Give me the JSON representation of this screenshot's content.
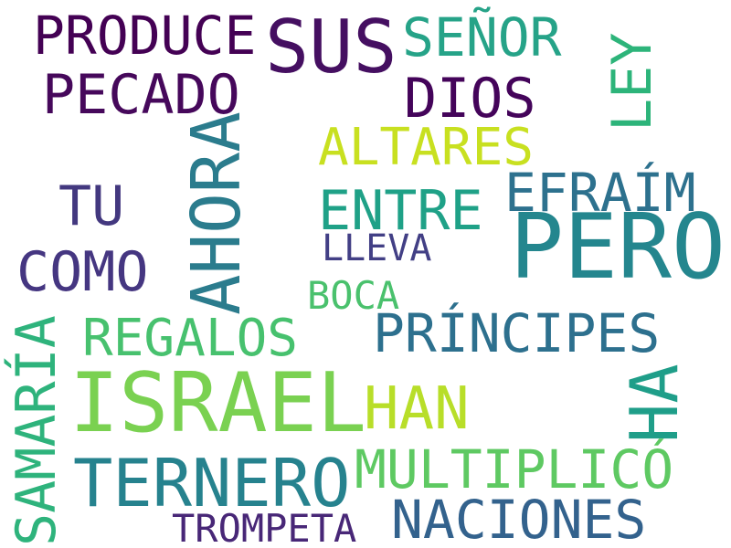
{
  "words": {
    "produce": {
      "text": "PRODUCE",
      "color": "#440154"
    },
    "sus": {
      "text": "SUS",
      "color": "#450f61"
    },
    "senor": {
      "text": "SEÑOR",
      "color": "#26a388"
    },
    "pecado": {
      "text": "PECADO",
      "color": "#46085b"
    },
    "dios": {
      "text": "DIOS",
      "color": "#44045a"
    },
    "ley": {
      "text": "LEY",
      "color": "#2db47a"
    },
    "altares": {
      "text": "ALTARES",
      "color": "#c8e020"
    },
    "ahora": {
      "text": "AHORA",
      "color": "#2b7c8d"
    },
    "tu": {
      "text": "TU",
      "color": "#43387f"
    },
    "entre": {
      "text": "ENTRE",
      "color": "#1fa187"
    },
    "efraim": {
      "text": "EFRAÍM",
      "color": "#2d718e"
    },
    "pero": {
      "text": "PERO",
      "color": "#24868e"
    },
    "lleva": {
      "text": "LLEVA",
      "color": "#423f85"
    },
    "como": {
      "text": "COMO",
      "color": "#453681"
    },
    "boca": {
      "text": "BOCA",
      "color": "#4ac16d"
    },
    "samaria": {
      "text": "SAMARÍA",
      "color": "#2eb37c"
    },
    "regalos": {
      "text": "REGALOS",
      "color": "#47c16e"
    },
    "principes": {
      "text": "PRÍNCIPES",
      "color": "#2d708e"
    },
    "israel": {
      "text": "ISRAEL",
      "color": "#7ad151"
    },
    "han": {
      "text": "HAN",
      "color": "#b8de29"
    },
    "ha": {
      "text": "HA",
      "color": "#1f9e89"
    },
    "ternero": {
      "text": "TERNERO",
      "color": "#26828e"
    },
    "multiplico": {
      "text": "MULTIPLICÓ",
      "color": "#5ec962"
    },
    "naciones": {
      "text": "NACIONES",
      "color": "#33628d"
    },
    "trompeta": {
      "text": "TROMPETA",
      "color": "#482777"
    }
  }
}
